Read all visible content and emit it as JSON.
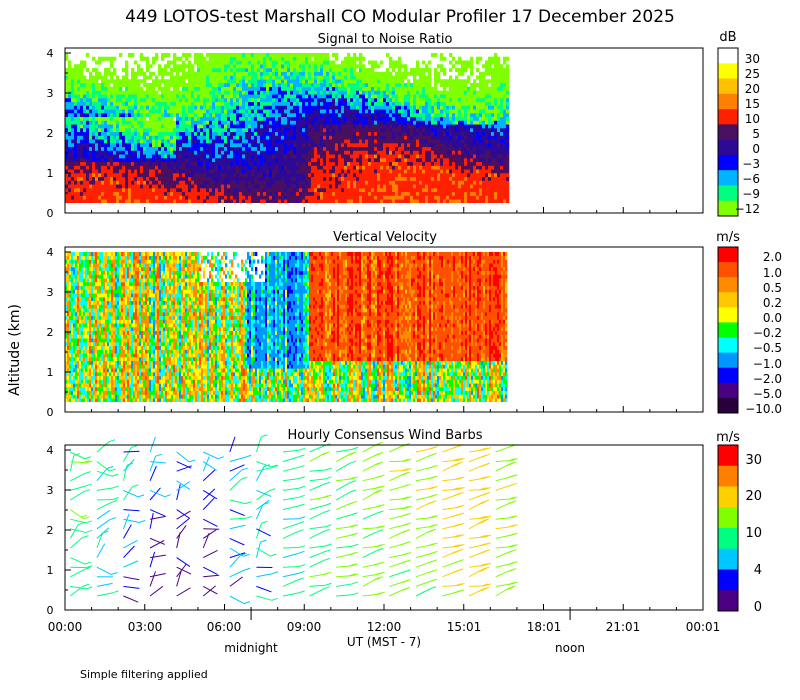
{
  "chart_data": {
    "title": "449 LOTOS-test Marshall CO Modular Profiler 17 December 2025",
    "footnote": "Simple filtering applied",
    "ylabel": "Altitude (km)",
    "x_axis": {
      "label": "UT  (MST - 7)",
      "range_hours": [
        0,
        24
      ],
      "ticks": [
        "00:00",
        "03:00",
        "06:00",
        "09:00",
        "12:00",
        "15:01",
        "18:01",
        "21:01",
        "00:01"
      ],
      "markers": [
        {
          "label": "midnight",
          "hour": 7
        },
        {
          "label": "noon",
          "hour": 19
        }
      ],
      "data_end_hour": 16.6
    },
    "y_axis": {
      "range_km": [
        0,
        4
      ],
      "ticks": [
        "0",
        "1",
        "2",
        "3",
        "4"
      ],
      "data_bottom_km": 0.25
    },
    "panels": [
      {
        "type": "heatmap",
        "title": "Signal to Noise Ratio",
        "unit": "dB",
        "colorbar_labels": [
          "30",
          "25",
          "20",
          "15",
          "10",
          "5",
          "0",
          "−3",
          "−6",
          "−9",
          "−12"
        ],
        "colors": [
          "#ffffff",
          "#ffff00",
          "#ffc000",
          "#ff8000",
          "#ff2000",
          "#4b0f5f",
          "#2d0a96",
          "#0000ff",
          "#00b4ff",
          "#00ff80",
          "#80ff00"
        ],
        "description": "High SNR (red/purple) near the surface, decreasing with altitude to blue and green above 2-3 km"
      },
      {
        "type": "heatmap",
        "title": "Vertical Velocity",
        "unit": "m/s",
        "colorbar_labels": [
          "2.0",
          "1.0",
          "0.5",
          "0.2",
          "0.0",
          "−0.2",
          "−0.5",
          "−1.0",
          "−2.0",
          "−5.0",
          "−10.0"
        ],
        "colors": [
          "#ff0000",
          "#ff5000",
          "#ff8c00",
          "#ffc800",
          "#ffff00",
          "#00ff00",
          "#00ffff",
          "#0096ff",
          "#0000ff",
          "#4b0082",
          "#28003c"
        ],
        "description": "Mostly weak motion with stronger upward (red/orange) values between 09:00 and 16:00 above 1.5 km"
      },
      {
        "type": "barbs",
        "title": "Hourly Consensus Wind Barbs",
        "unit": "m/s",
        "colorbar_labels": [
          "30",
          "20",
          "10",
          "4",
          "0"
        ],
        "colors": [
          "#ff0000",
          "#ff8000",
          "#ffd000",
          "#80ff00",
          "#00ff80",
          "#00c8ff",
          "#0000ff",
          "#4b0082"
        ],
        "hours": [
          0,
          1,
          2,
          3,
          4,
          5,
          6,
          7,
          8,
          9,
          10,
          11,
          12,
          13,
          14,
          15,
          16
        ],
        "speed_by_hour_ms": [
          7,
          5,
          3,
          2,
          1,
          1,
          3,
          4,
          6,
          8,
          9,
          10,
          11,
          11,
          14,
          16,
          11
        ]
      }
    ]
  }
}
